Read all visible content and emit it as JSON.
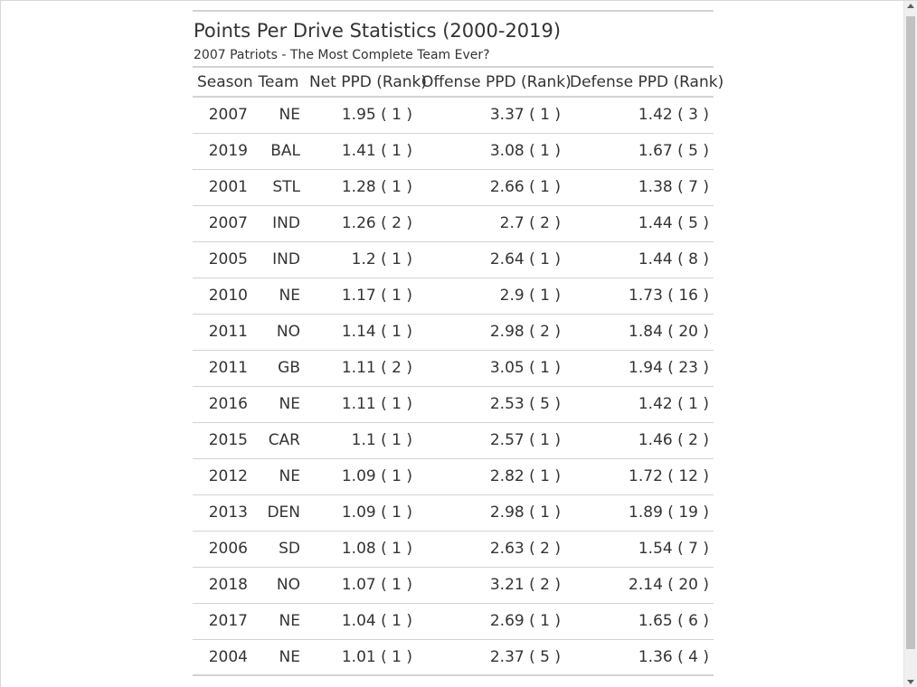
{
  "table": {
    "title": "Points Per Drive Statistics (2000-2019)",
    "subtitle": "2007 Patriots - The Most Complete Team Ever?",
    "headers": {
      "season": "Season",
      "team": "Team",
      "net": "Net PPD (Rank)",
      "offense": "Offense PPD (Rank)",
      "defense": "Defense PPD (Rank)"
    },
    "rows": [
      {
        "season": "2007",
        "team": "NE",
        "net": "1.95 ( 1 )",
        "offense": "3.37 ( 1 )",
        "defense": "1.42 ( 3 )"
      },
      {
        "season": "2019",
        "team": "BAL",
        "net": "1.41 ( 1 )",
        "offense": "3.08 ( 1 )",
        "defense": "1.67 ( 5 )"
      },
      {
        "season": "2001",
        "team": "STL",
        "net": "1.28 ( 1 )",
        "offense": "2.66 ( 1 )",
        "defense": "1.38 ( 7 )"
      },
      {
        "season": "2007",
        "team": "IND",
        "net": "1.26 ( 2 )",
        "offense": "2.7 ( 2 )",
        "defense": "1.44 ( 5 )"
      },
      {
        "season": "2005",
        "team": "IND",
        "net": "1.2 ( 1 )",
        "offense": "2.64 ( 1 )",
        "defense": "1.44 ( 8 )"
      },
      {
        "season": "2010",
        "team": "NE",
        "net": "1.17 ( 1 )",
        "offense": "2.9 ( 1 )",
        "defense": "1.73 ( 16 )"
      },
      {
        "season": "2011",
        "team": "NO",
        "net": "1.14 ( 1 )",
        "offense": "2.98 ( 2 )",
        "defense": "1.84 ( 20 )"
      },
      {
        "season": "2011",
        "team": "GB",
        "net": "1.11 ( 2 )",
        "offense": "3.05 ( 1 )",
        "defense": "1.94 ( 23 )"
      },
      {
        "season": "2016",
        "team": "NE",
        "net": "1.11 ( 1 )",
        "offense": "2.53 ( 5 )",
        "defense": "1.42 ( 1 )"
      },
      {
        "season": "2015",
        "team": "CAR",
        "net": "1.1 ( 1 )",
        "offense": "2.57 ( 1 )",
        "defense": "1.46 ( 2 )"
      },
      {
        "season": "2012",
        "team": "NE",
        "net": "1.09 ( 1 )",
        "offense": "2.82 ( 1 )",
        "defense": "1.72 ( 12 )"
      },
      {
        "season": "2013",
        "team": "DEN",
        "net": "1.09 ( 1 )",
        "offense": "2.98 ( 1 )",
        "defense": "1.89 ( 19 )"
      },
      {
        "season": "2006",
        "team": "SD",
        "net": "1.08 ( 1 )",
        "offense": "2.63 ( 2 )",
        "defense": "1.54 ( 7 )"
      },
      {
        "season": "2018",
        "team": "NO",
        "net": "1.07 ( 1 )",
        "offense": "3.21 ( 2 )",
        "defense": "2.14 ( 20 )"
      },
      {
        "season": "2017",
        "team": "NE",
        "net": "1.04 ( 1 )",
        "offense": "2.69 ( 1 )",
        "defense": "1.65 ( 6 )"
      },
      {
        "season": "2004",
        "team": "NE",
        "net": "1.01 ( 1 )",
        "offense": "2.37 ( 5 )",
        "defense": "1.36 ( 4 )"
      }
    ]
  },
  "colors": {
    "text": "#333333",
    "rule": "#d3d3d3",
    "scrollbar_track": "#f0f0f0",
    "scrollbar_thumb": "#c1c1c1"
  },
  "icons": {
    "scroll_up": "scroll-up-arrow-icon",
    "scroll_down": "scroll-down-arrow-icon"
  }
}
